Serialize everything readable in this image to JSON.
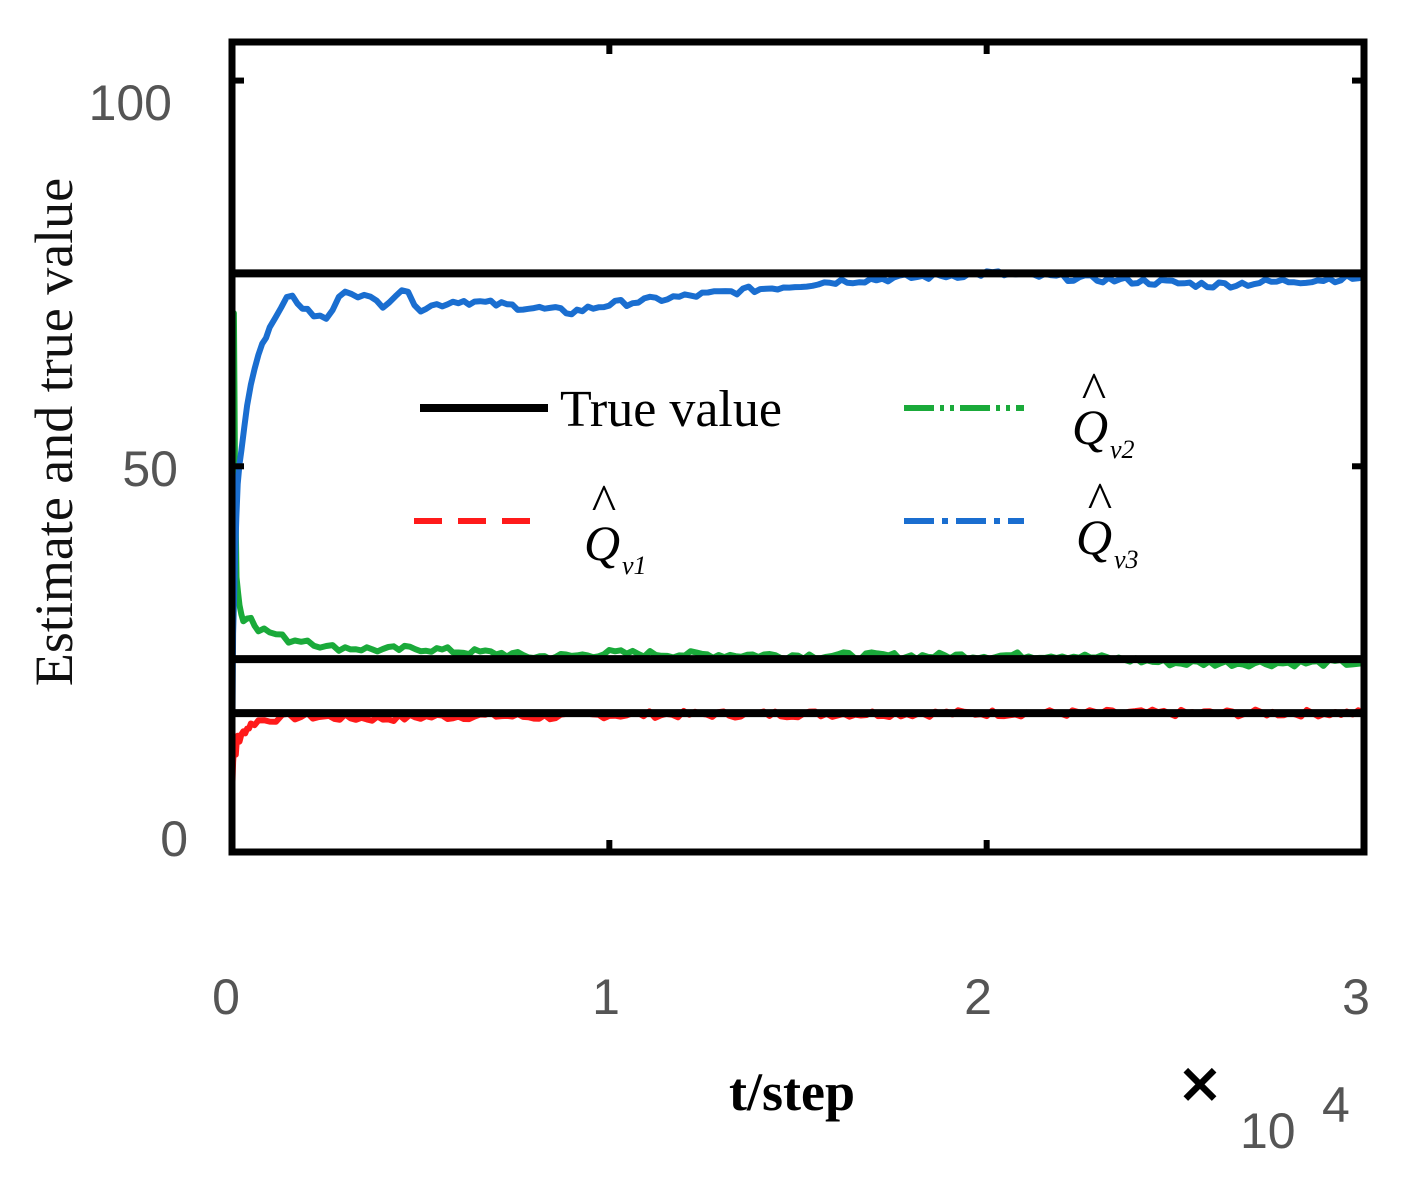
{
  "chart_data": {
    "type": "line",
    "title": "",
    "xlabel": "t/step",
    "ylabel": "Estimate and true value",
    "xlim": [
      0,
      30000
    ],
    "ylim": [
      0,
      105
    ],
    "x_ticks": [
      0,
      10000,
      20000,
      30000
    ],
    "x_tick_labels": [
      "0",
      "1",
      "2",
      "3"
    ],
    "y_ticks": [
      0,
      50,
      100
    ],
    "y_tick_labels": [
      "0",
      "50",
      "100"
    ],
    "x_multiplier": {
      "symbol": "×",
      "base": "10",
      "exponent": "4"
    },
    "grid": false,
    "legend_position": "center",
    "legend": [
      {
        "label": "True value",
        "base": "",
        "sub": "",
        "color": "#000000",
        "style": "solid"
      },
      {
        "label": "",
        "base": "Q",
        "sub": "v1",
        "color": "#ff1a1a",
        "style": "dashed"
      },
      {
        "label": "",
        "base": "Q",
        "sub": "v2",
        "color": "#1aaa3a",
        "style": "dashdot"
      },
      {
        "label": "",
        "base": "Q",
        "sub": "v3",
        "color": "#1a6ed0",
        "style": "dashdot"
      }
    ],
    "true_values": [
      75,
      25,
      18
    ],
    "series": [
      {
        "key": "q1",
        "color": "#ff1a1a",
        "x": [
          0,
          30,
          60,
          100,
          150,
          200,
          300,
          400,
          500,
          700,
          1000,
          1500,
          2000,
          3000,
          4000,
          5000,
          6000,
          7000,
          8000,
          9000,
          10000,
          15000,
          20000,
          25000,
          30000
        ],
        "y": [
          7,
          12,
          14,
          13,
          15,
          14.5,
          15.5,
          16,
          16.5,
          17,
          17.2,
          17.5,
          17.6,
          17.4,
          17.3,
          17.5,
          17.6,
          17.7,
          17.5,
          17.6,
          17.8,
          17.9,
          18,
          18,
          18
        ]
      },
      {
        "key": "q2",
        "color": "#1aaa3a",
        "x": [
          0,
          20,
          50,
          80,
          120,
          200,
          300,
          500,
          700,
          1000,
          1500,
          2000,
          2500,
          3000,
          4000,
          5000,
          6000,
          7000,
          8000,
          9000,
          10000,
          12000,
          15000,
          18000,
          22000,
          25000,
          28000,
          30000
        ],
        "y": [
          14,
          55,
          70,
          48,
          36,
          32,
          30,
          30.5,
          29,
          28.5,
          27.5,
          27.5,
          26.5,
          26.5,
          26.2,
          26.4,
          26,
          25.8,
          25.3,
          25.4,
          25.8,
          25.6,
          25.5,
          25.4,
          25.5,
          24.5,
          24.5,
          24.5
        ]
      },
      {
        "key": "q3",
        "color": "#1a6ed0",
        "x": [
          0,
          30,
          80,
          150,
          250,
          400,
          600,
          800,
          1000,
          1300,
          1600,
          2000,
          2500,
          3000,
          3500,
          4000,
          4500,
          5000,
          6000,
          7000,
          8000,
          9000,
          10000,
          12000,
          14000,
          16000,
          18000,
          20000,
          22000,
          24000,
          26000,
          28000,
          30000
        ],
        "y": [
          10,
          28,
          38,
          48,
          52,
          58,
          63,
          66,
          68,
          71,
          72,
          70,
          69,
          73,
          72,
          71,
          73,
          70.5,
          71.5,
          71,
          70.5,
          70,
          71,
          72,
          73,
          74,
          74.5,
          75,
          74.5,
          74,
          73.5,
          74,
          74.5
        ]
      }
    ]
  }
}
